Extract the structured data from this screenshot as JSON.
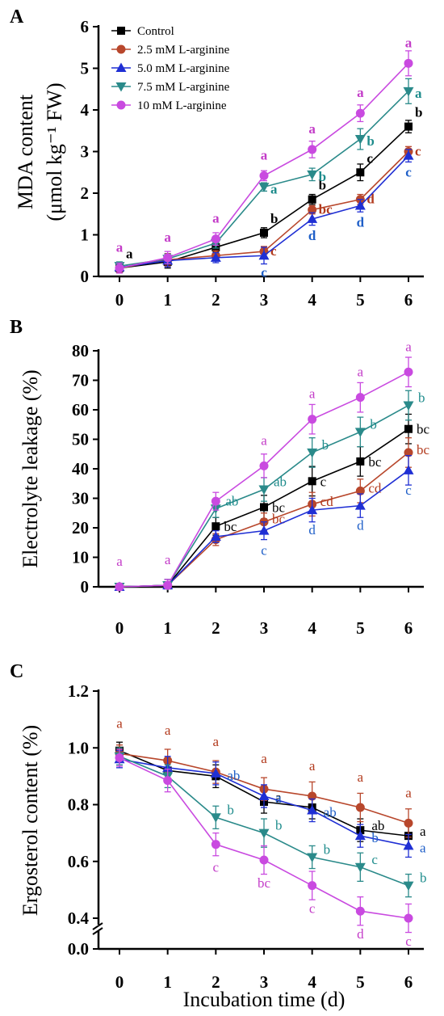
{
  "figure": {
    "panels": [
      {
        "letter": "A"
      },
      {
        "letter": "B"
      },
      {
        "letter": "C"
      }
    ],
    "xlabel": "Incubation time (d)"
  },
  "series_style": [
    {
      "name": "Control",
      "color": "#000000",
      "marker": "square",
      "label_color": "#000000"
    },
    {
      "name": "2.5 mM L-arginine",
      "color": "#b8472c",
      "marker": "circle",
      "label_color": "#b23a1d"
    },
    {
      "name": "5.0 mM L-arginine",
      "color": "#1f2fd4",
      "marker": "triangle-up",
      "label_color": "#1f5fc8"
    },
    {
      "name": "7.5 mM L-arginine",
      "color": "#2a8a8a",
      "marker": "triangle-down",
      "label_color": "#1e8c8c"
    },
    {
      "name": "10 mM L-arginine",
      "color": "#c94ae0",
      "marker": "circle",
      "label_color": "#c33cc8"
    }
  ],
  "chart_data": [
    {
      "panel": "A",
      "type": "line",
      "ylabel_line1": "MDA content",
      "ylabel_line2": "(μmol kg⁻¹ FW)",
      "x": [
        0,
        1,
        2,
        3,
        4,
        5,
        6
      ],
      "xlim": [
        0,
        6
      ],
      "ylim": [
        0,
        6
      ],
      "yticks": [
        0,
        1,
        2,
        3,
        4,
        5,
        6
      ],
      "legend_position": "top-left",
      "series": [
        {
          "name": "Control",
          "values": [
            0.2,
            0.35,
            0.7,
            1.05,
            1.85,
            2.5,
            3.6
          ],
          "errors": [
            0.1,
            0.15,
            0.1,
            0.12,
            0.12,
            0.2,
            0.15
          ],
          "labels": [
            "a",
            "",
            "",
            "b",
            "b",
            "c",
            "b"
          ]
        },
        {
          "name": "2.5 mM L-arginine",
          "values": [
            0.2,
            0.4,
            0.5,
            0.6,
            1.6,
            1.85,
            3.0
          ],
          "errors": [
            0.1,
            0.15,
            0.12,
            0.12,
            0.1,
            0.12,
            0.12
          ],
          "labels": [
            "",
            "",
            "",
            "c",
            "bc",
            "d",
            "c"
          ]
        },
        {
          "name": "5.0 mM L-arginine",
          "values": [
            0.22,
            0.38,
            0.45,
            0.5,
            1.38,
            1.7,
            2.9
          ],
          "errors": [
            0.1,
            0.15,
            0.12,
            0.2,
            0.15,
            0.15,
            0.15
          ],
          "labels": [
            "",
            "",
            "",
            "c",
            "d",
            "d",
            "c"
          ]
        },
        {
          "name": "7.5 mM L-arginine",
          "values": [
            0.25,
            0.42,
            0.8,
            2.15,
            2.45,
            3.3,
            4.45
          ],
          "errors": [
            0.1,
            0.12,
            0.12,
            0.1,
            0.15,
            0.25,
            0.3
          ],
          "labels": [
            "",
            "",
            "",
            "a",
            "b",
            "b",
            "a"
          ]
        },
        {
          "name": "10 mM L-arginine",
          "values": [
            0.2,
            0.45,
            0.9,
            2.42,
            3.05,
            3.92,
            5.12
          ],
          "errors": [
            0.12,
            0.15,
            0.15,
            0.12,
            0.2,
            0.2,
            0.3
          ],
          "labels": [
            "a",
            "a",
            "a",
            "a",
            "a",
            "a",
            "a"
          ]
        }
      ]
    },
    {
      "panel": "B",
      "type": "line",
      "ylabel": "Electrolyte leakage (%)",
      "x": [
        0,
        1,
        2,
        3,
        4,
        5,
        6
      ],
      "xlim": [
        0,
        6
      ],
      "ylim": [
        0,
        80
      ],
      "yticks": [
        0,
        10,
        20,
        30,
        40,
        50,
        60,
        70,
        80
      ],
      "series": [
        {
          "name": "Control",
          "values": [
            0,
            0.5,
            20.5,
            27,
            35.8,
            42.5,
            53.5
          ],
          "errors": [
            1,
            2,
            3,
            4,
            5,
            5,
            5
          ],
          "labels": [
            "",
            "",
            "bc",
            "bc",
            "c",
            "bc",
            "bc"
          ]
        },
        {
          "name": "2.5 mM L-arginine",
          "values": [
            0,
            0.5,
            16,
            22,
            28,
            32.5,
            45.5
          ],
          "errors": [
            1,
            2,
            2,
            3,
            4,
            4,
            5
          ],
          "labels": [
            "",
            "",
            "",
            "bc",
            "cd",
            "cd",
            "bc"
          ]
        },
        {
          "name": "5.0 mM L-arginine",
          "values": [
            0,
            0.5,
            17,
            19,
            26,
            27.5,
            39.5
          ],
          "errors": [
            1,
            2,
            2,
            3,
            4,
            4,
            5
          ],
          "labels": [
            "",
            "",
            "",
            "c",
            "d",
            "d",
            "c"
          ]
        },
        {
          "name": "7.5 mM L-arginine",
          "values": [
            0,
            0.5,
            26.5,
            33,
            45.5,
            52.5,
            61.5
          ],
          "errors": [
            1,
            2,
            3,
            4,
            5,
            5,
            5
          ],
          "labels": [
            "",
            "",
            "ab",
            "ab",
            "b",
            "b",
            "b"
          ]
        },
        {
          "name": "10 mM L-arginine",
          "values": [
            0,
            0.5,
            29,
            41,
            56.8,
            64.2,
            72.8
          ],
          "errors": [
            1,
            2,
            3,
            4,
            5,
            5,
            5
          ],
          "labels": [
            "a",
            "a",
            "",
            "a",
            "a",
            "a",
            "a"
          ]
        }
      ]
    },
    {
      "panel": "C",
      "type": "line",
      "ylabel": "Ergosterol content (%)",
      "x": [
        0,
        1,
        2,
        3,
        4,
        5,
        6
      ],
      "xlim": [
        0,
        6
      ],
      "ylim": [
        0.0,
        1.2
      ],
      "axis_break": true,
      "yticks": [
        0.0,
        0.4,
        0.6,
        0.8,
        1.0,
        1.2
      ],
      "series": [
        {
          "name": "Control",
          "values": [
            0.99,
            0.92,
            0.9,
            0.81,
            0.79,
            0.71,
            0.69
          ],
          "errors": [
            0.03,
            0.04,
            0.04,
            0.04,
            0.04,
            0.04,
            0.04
          ],
          "labels": [
            "",
            "",
            "",
            "a",
            "",
            "ab",
            "a"
          ]
        },
        {
          "name": "2.5 mM L-arginine",
          "values": [
            0.98,
            0.955,
            0.915,
            0.855,
            0.83,
            0.79,
            0.735
          ],
          "errors": [
            0.03,
            0.04,
            0.04,
            0.04,
            0.05,
            0.05,
            0.05
          ],
          "labels": [
            "a",
            "a",
            "a",
            "a",
            "a",
            "a",
            "a"
          ]
        },
        {
          "name": "5.0 mM L-arginine",
          "values": [
            0.96,
            0.93,
            0.91,
            0.83,
            0.78,
            0.69,
            0.655
          ],
          "errors": [
            0.03,
            0.04,
            0.04,
            0.04,
            0.04,
            0.04,
            0.04
          ],
          "labels": [
            "",
            "",
            "ab",
            "a",
            "ab",
            "b",
            "a"
          ]
        },
        {
          "name": "7.5 mM L-arginine",
          "values": [
            0.97,
            0.9,
            0.755,
            0.7,
            0.615,
            0.58,
            0.515
          ],
          "errors": [
            0.03,
            0.04,
            0.04,
            0.05,
            0.04,
            0.05,
            0.04
          ],
          "labels": [
            "",
            "",
            "b",
            "b",
            "b",
            "c",
            "b"
          ]
        },
        {
          "name": "10 mM L-arginine",
          "values": [
            0.965,
            0.885,
            0.66,
            0.605,
            0.515,
            0.425,
            0.4
          ],
          "errors": [
            0.03,
            0.04,
            0.04,
            0.05,
            0.05,
            0.05,
            0.05
          ],
          "labels": [
            "",
            "",
            "c",
            "bc",
            "c",
            "d",
            "c"
          ]
        }
      ]
    }
  ]
}
